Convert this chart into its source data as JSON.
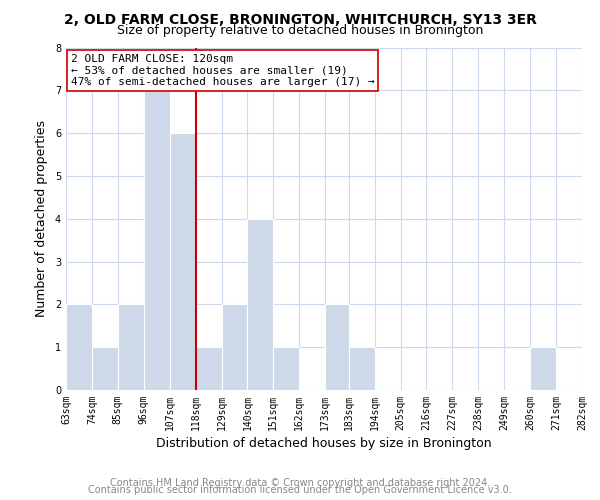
{
  "title": "2, OLD FARM CLOSE, BRONINGTON, WHITCHURCH, SY13 3ER",
  "subtitle": "Size of property relative to detached houses in Bronington",
  "xlabel": "Distribution of detached houses by size in Bronington",
  "ylabel": "Number of detached properties",
  "bin_edges": [
    63,
    74,
    85,
    96,
    107,
    118,
    129,
    140,
    151,
    162,
    173,
    183,
    194,
    205,
    216,
    227,
    238,
    249,
    260,
    271,
    282
  ],
  "bin_labels": [
    "63sqm",
    "74sqm",
    "85sqm",
    "96sqm",
    "107sqm",
    "118sqm",
    "129sqm",
    "140sqm",
    "151sqm",
    "162sqm",
    "173sqm",
    "183sqm",
    "194sqm",
    "205sqm",
    "216sqm",
    "227sqm",
    "238sqm",
    "249sqm",
    "260sqm",
    "271sqm",
    "282sqm"
  ],
  "counts": [
    2,
    1,
    2,
    7,
    6,
    1,
    2,
    4,
    1,
    0,
    2,
    1,
    0,
    0,
    0,
    0,
    0,
    0,
    1,
    0
  ],
  "bar_color": "#cdd9e8",
  "bar_edge_color": "#ffffff",
  "reference_line_x": 118,
  "reference_line_color": "#cc0000",
  "annotation_line1": "2 OLD FARM CLOSE: 120sqm",
  "annotation_line2": "← 53% of detached houses are smaller (19)",
  "annotation_line3": "47% of semi-detached houses are larger (17) →",
  "annotation_box_edge_color": "#cc0000",
  "annotation_box_face_color": "#ffffff",
  "ylim": [
    0,
    8
  ],
  "yticks": [
    0,
    1,
    2,
    3,
    4,
    5,
    6,
    7,
    8
  ],
  "footer_line1": "Contains HM Land Registry data © Crown copyright and database right 2024.",
  "footer_line2": "Contains public sector information licensed under the Open Government Licence v3.0.",
  "bg_color": "#ffffff",
  "grid_color": "#ccdaeb",
  "title_fontsize": 10,
  "subtitle_fontsize": 9,
  "axis_label_fontsize": 9,
  "tick_fontsize": 7,
  "annotation_fontsize": 8,
  "footer_fontsize": 7
}
